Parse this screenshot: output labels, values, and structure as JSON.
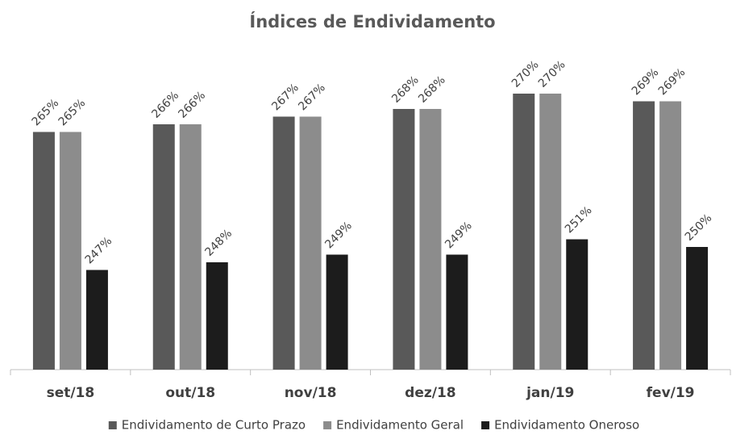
{
  "chart_data": {
    "type": "bar",
    "title": "Índices de Endividamento",
    "categories": [
      "set/18",
      "out/18",
      "nov/18",
      "dez/18",
      "jan/19",
      "fev/19"
    ],
    "series": [
      {
        "name": "Endividamento de Curto Prazo",
        "color": "#595959",
        "values": [
          265,
          266,
          267,
          268,
          270,
          269
        ],
        "value_labels": [
          "265%",
          "266%",
          "267%",
          "268%",
          "270%",
          "269%"
        ]
      },
      {
        "name": "Endividamento Geral",
        "color": "#8c8c8c",
        "values": [
          265,
          266,
          267,
          268,
          270,
          269
        ],
        "value_labels": [
          "265%",
          "266%",
          "267%",
          "268%",
          "270%",
          "269%"
        ]
      },
      {
        "name": "Endividamento Oneroso",
        "color": "#1c1c1c",
        "values": [
          247,
          248,
          249,
          249,
          251,
          250
        ],
        "value_labels": [
          "247%",
          "248%",
          "249%",
          "249%",
          "251%",
          "250%"
        ]
      }
    ],
    "ylim": [
      234,
      273
    ],
    "legend": "bottom"
  }
}
